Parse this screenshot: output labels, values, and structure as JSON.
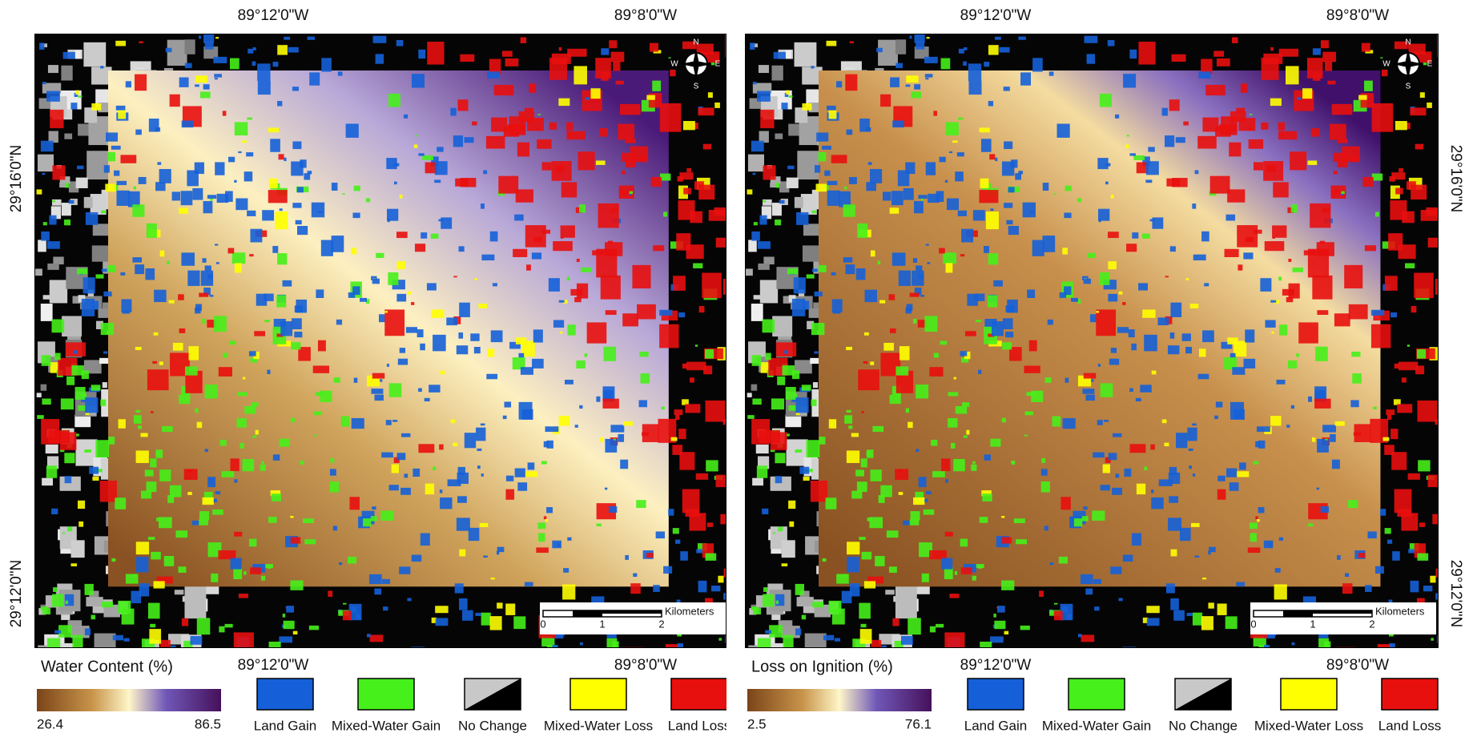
{
  "panels": [
    {
      "colorbar": {
        "title": "Water Content (%)",
        "min": 26.4,
        "max": 86.5
      },
      "top_labels": [
        "89°12'0\"W",
        "89°8'0\"W"
      ],
      "bottom_labels": [
        "89°12'0\"W",
        "89°8'0\"W"
      ],
      "side_labels": [
        "29°16'0\"N",
        "29°12'0\"N"
      ],
      "scale": {
        "unit": "Kilometers",
        "ticks": [
          0,
          1,
          2
        ]
      },
      "compass": [
        "N",
        "S",
        "W",
        "E"
      ]
    },
    {
      "colorbar": {
        "title": "Loss on Ignition (%)",
        "min": 2.5,
        "max": 76.1
      },
      "top_labels": [
        "89°12'0\"W",
        "89°8'0\"W"
      ],
      "bottom_labels": [
        "89°12'0\"W",
        "89°8'0\"W"
      ],
      "side_labels": [
        "29°16'0\"N",
        "29°12'0\"N"
      ],
      "scale": {
        "unit": "Kilometers",
        "ticks": [
          0,
          1,
          2
        ]
      },
      "compass": [
        "N",
        "S",
        "W",
        "E"
      ]
    }
  ],
  "legend": [
    {
      "label": "Land Gain",
      "color": "#1560d8"
    },
    {
      "label": "Mixed-Water Gain",
      "color": "#46f01a"
    },
    {
      "label": "No Change",
      "color": "#000000"
    },
    {
      "label": "Mixed-Water Loss",
      "color": "#ffff00"
    },
    {
      "label": "Land Loss",
      "color": "#e8100e"
    }
  ]
}
